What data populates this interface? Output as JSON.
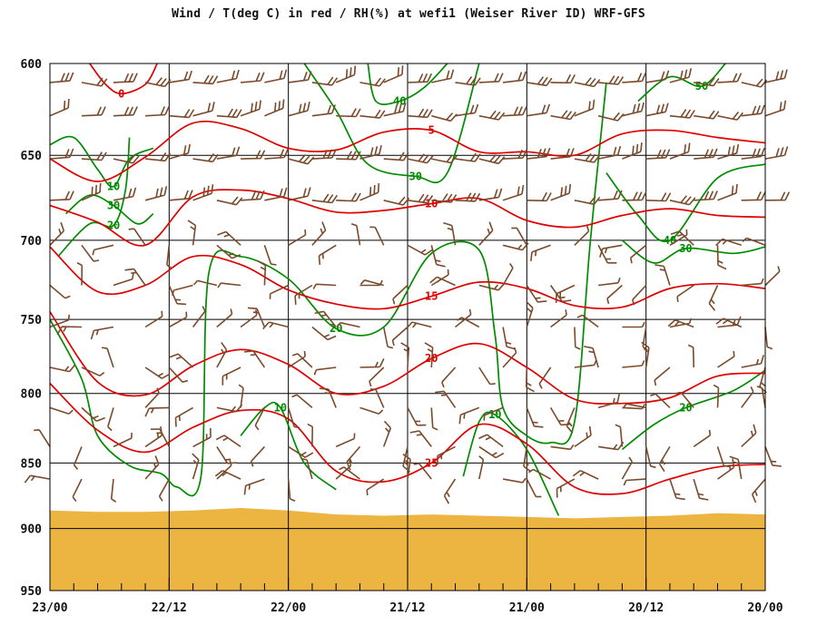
{
  "chart_data": {
    "type": "line",
    "title": "Wind / T(deg C) in red / RH(%) at wefi1 (Weiser River ID)  WRF-GFS",
    "y_axis": {
      "label": "",
      "ticks": [
        600,
        650,
        700,
        750,
        800,
        850,
        900,
        950
      ],
      "range": [
        950,
        600
      ],
      "scale": "log-pressure"
    },
    "x_axis": {
      "label": "",
      "ticks": [
        "23/00",
        "22/12",
        "22/00",
        "21/12",
        "21/00",
        "20/12",
        "20/00"
      ],
      "range": [
        "23/00",
        "20/00"
      ],
      "direction": "time decreasing to the right"
    },
    "grid": true,
    "colors": {
      "temperature": "#e00000",
      "rh": "#008c00",
      "wind": "#7a4a2a",
      "terrain": "#ecb441",
      "grid": "#000000"
    },
    "terrain_surface_hpa": [
      [
        0,
        886
      ],
      [
        6,
        887
      ],
      [
        12,
        887
      ],
      [
        18,
        886
      ],
      [
        24,
        884
      ],
      [
        30,
        886
      ],
      [
        36,
        889
      ],
      [
        42,
        890
      ],
      [
        48,
        889
      ],
      [
        54,
        890
      ],
      [
        60,
        891
      ],
      [
        66,
        892
      ],
      [
        72,
        891
      ],
      [
        78,
        890
      ],
      [
        84,
        888
      ],
      [
        90,
        889
      ]
    ],
    "temperature_isotherms": [
      {
        "value": 0,
        "label": "0",
        "points": [
          [
            5,
            600
          ],
          [
            7,
            611
          ],
          [
            9,
            616
          ],
          [
            12,
            611
          ],
          [
            13.5,
            600
          ]
        ]
      },
      {
        "value": 5,
        "label": "5",
        "points": [
          [
            0,
            652
          ],
          [
            6,
            665
          ],
          [
            12,
            651
          ],
          [
            18,
            632
          ],
          [
            24,
            635
          ],
          [
            30,
            646
          ],
          [
            36,
            647
          ],
          [
            42,
            637
          ],
          [
            48,
            636
          ],
          [
            54,
            648
          ],
          [
            60,
            648
          ],
          [
            66,
            650
          ],
          [
            72,
            638
          ],
          [
            78,
            636
          ],
          [
            84,
            640
          ],
          [
            90,
            643
          ]
        ]
      },
      {
        "value": 10,
        "label": "10",
        "points": [
          [
            0,
            679
          ],
          [
            6,
            689
          ],
          [
            12,
            703
          ],
          [
            18,
            674
          ],
          [
            24,
            670
          ],
          [
            30,
            675
          ],
          [
            36,
            683
          ],
          [
            42,
            682
          ],
          [
            48,
            678
          ],
          [
            54,
            675
          ],
          [
            60,
            688
          ],
          [
            66,
            692
          ],
          [
            72,
            685
          ],
          [
            78,
            681
          ],
          [
            84,
            685
          ],
          [
            90,
            686
          ]
        ]
      },
      {
        "value": 15,
        "label": "15",
        "points": [
          [
            0,
            704
          ],
          [
            6,
            732
          ],
          [
            12,
            728
          ],
          [
            18,
            710
          ],
          [
            24,
            715
          ],
          [
            30,
            731
          ],
          [
            36,
            740
          ],
          [
            42,
            743
          ],
          [
            48,
            735
          ],
          [
            54,
            726
          ],
          [
            60,
            730
          ],
          [
            66,
            741
          ],
          [
            72,
            742
          ],
          [
            78,
            730
          ],
          [
            84,
            727
          ],
          [
            90,
            730
          ]
        ]
      },
      {
        "value": 20,
        "label": "20",
        "points": [
          [
            0,
            745
          ],
          [
            6,
            792
          ],
          [
            12,
            801
          ],
          [
            18,
            781
          ],
          [
            24,
            770
          ],
          [
            30,
            780
          ],
          [
            36,
            800
          ],
          [
            42,
            795
          ],
          [
            48,
            776
          ],
          [
            54,
            766
          ],
          [
            60,
            782
          ],
          [
            66,
            804
          ],
          [
            72,
            807
          ],
          [
            78,
            803
          ],
          [
            84,
            788
          ],
          [
            90,
            786
          ]
        ]
      },
      {
        "value": 25,
        "label": "25",
        "points": [
          [
            0,
            793
          ],
          [
            6,
            826
          ],
          [
            12,
            842
          ],
          [
            18,
            824
          ],
          [
            24,
            812
          ],
          [
            30,
            818
          ],
          [
            36,
            856
          ],
          [
            42,
            864
          ],
          [
            48,
            850
          ],
          [
            54,
            822
          ],
          [
            60,
            836
          ],
          [
            66,
            868
          ],
          [
            72,
            873
          ],
          [
            78,
            862
          ],
          [
            84,
            853
          ],
          [
            90,
            851
          ]
        ]
      }
    ],
    "rh_isohumes": [
      {
        "value": 10,
        "label": "10",
        "points": [
          [
            0,
            644
          ],
          [
            3,
            640
          ],
          [
            6,
            658
          ],
          [
            8,
            668
          ],
          [
            10,
            652
          ],
          [
            13,
            646
          ]
        ]
      },
      {
        "value": 20,
        "label": "20",
        "points": [
          [
            1,
            710
          ],
          [
            5,
            690
          ],
          [
            8,
            691
          ],
          [
            9.5,
            670
          ],
          [
            10,
            640
          ]
        ]
      },
      {
        "value": 30,
        "label": "30",
        "points": [
          [
            2,
            684
          ],
          [
            5,
            673
          ],
          [
            8,
            679
          ],
          [
            11,
            690
          ],
          [
            13,
            684
          ]
        ]
      },
      {
        "value": 20,
        "label": "20",
        "points": [
          [
            0,
            750
          ],
          [
            4,
            790
          ],
          [
            6,
            830
          ],
          [
            10,
            852
          ],
          [
            14,
            858
          ],
          [
            16,
            868
          ],
          [
            19,
            860
          ],
          [
            20,
            720
          ],
          [
            24,
            710
          ],
          [
            30,
            724
          ],
          [
            36,
            756
          ],
          [
            42,
            755
          ],
          [
            48,
            708
          ],
          [
            54,
            706
          ],
          [
            56,
            760
          ],
          [
            57,
            810
          ],
          [
            60,
            830
          ],
          [
            63,
            835
          ],
          [
            66,
            820
          ],
          [
            68,
            700
          ],
          [
            70,
            610
          ]
        ]
      },
      {
        "value": 10,
        "label": "10",
        "points": [
          [
            24,
            830
          ],
          [
            27,
            810
          ],
          [
            29,
            810
          ],
          [
            32,
            850
          ],
          [
            36,
            870
          ]
        ]
      },
      {
        "value": 10,
        "label": "10",
        "points": [
          [
            52,
            860
          ],
          [
            54,
            820
          ],
          [
            56,
            815
          ],
          [
            60,
            840
          ],
          [
            64,
            890
          ]
        ]
      },
      {
        "value": 40,
        "label": "40",
        "points": [
          [
            40,
            600
          ],
          [
            41,
            620
          ],
          [
            44,
            620
          ],
          [
            47,
            613
          ],
          [
            50,
            600
          ]
        ]
      },
      {
        "value": 30,
        "label": "30",
        "points": [
          [
            32,
            600
          ],
          [
            36,
            625
          ],
          [
            40,
            655
          ],
          [
            46,
            662
          ],
          [
            50,
            660
          ],
          [
            54,
            600
          ]
        ]
      },
      {
        "value": 50,
        "label": "50",
        "points": [
          [
            74,
            620
          ],
          [
            78,
            607
          ],
          [
            82,
            612
          ],
          [
            85,
            600
          ]
        ]
      },
      {
        "value": 40,
        "label": "40",
        "points": [
          [
            70,
            660
          ],
          [
            74,
            685
          ],
          [
            78,
            700
          ],
          [
            84,
            663
          ],
          [
            90,
            655
          ]
        ]
      },
      {
        "value": 30,
        "label": "30",
        "points": [
          [
            72,
            700
          ],
          [
            76,
            714
          ],
          [
            80,
            705
          ],
          [
            86,
            708
          ],
          [
            90,
            704
          ]
        ]
      },
      {
        "value": 20,
        "label": "20",
        "points": [
          [
            72,
            840
          ],
          [
            76,
            822
          ],
          [
            80,
            810
          ],
          [
            86,
            798
          ],
          [
            90,
            784
          ]
        ]
      }
    ],
    "wind": {
      "units": "knots (barbs)",
      "levels_hpa": [
        610,
        628,
        652,
        676,
        703,
        728,
        755,
        782,
        810,
        838,
        862
      ],
      "times_hrs_before": [
        0,
        4,
        8,
        12,
        15,
        18,
        21,
        24,
        27,
        30,
        33,
        36,
        39,
        42,
        45,
        48,
        51,
        54,
        57,
        60,
        63,
        66,
        69,
        72,
        75,
        78,
        81,
        84,
        87,
        90
      ]
    }
  }
}
